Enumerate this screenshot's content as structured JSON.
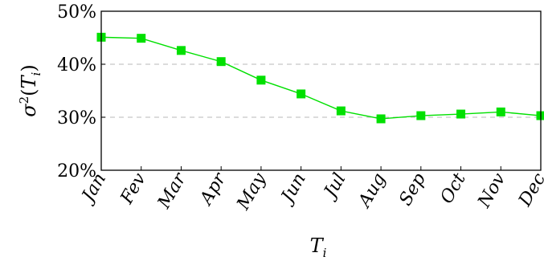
{
  "chart_data": {
    "type": "line",
    "xlabel": "T_i",
    "ylabel": "σ²(T_i)",
    "categories": [
      "Jan",
      "Fev",
      "Mar",
      "Apr",
      "May",
      "Jun",
      "Jul",
      "Aug",
      "Sep",
      "Oct",
      "Nov",
      "Dec"
    ],
    "series": [
      {
        "values": [
          45.1,
          44.9,
          42.6,
          40.5,
          37.0,
          34.4,
          31.2,
          29.7,
          30.3,
          30.6,
          31.0,
          30.3
        ],
        "color": "#00e000",
        "marker": "square"
      }
    ],
    "yticks": [
      20,
      30,
      40,
      50
    ],
    "ytick_labels": [
      "20%",
      "30%",
      "40%",
      "50%"
    ],
    "ylim": [
      20,
      50
    ],
    "grid": "horizontal dashed at 30 and 40",
    "colors": {
      "line": "#00e000",
      "grid": "#c8c8c8",
      "axis": "#000000"
    }
  }
}
